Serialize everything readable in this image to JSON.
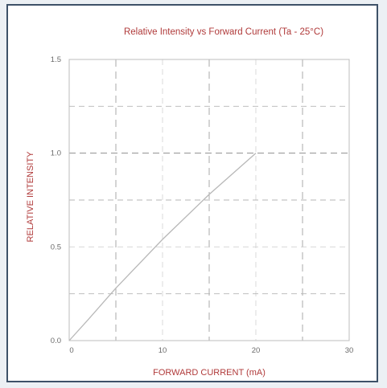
{
  "chart_data": {
    "type": "line",
    "title": "Relative Intensity vs Forward Current (Ta - 25°C)",
    "xlabel": "FORWARD CURRENT (mA)",
    "ylabel": "RELATIVE INTENSITY",
    "xlim": [
      0,
      30
    ],
    "ylim": [
      0,
      1.5
    ],
    "x_ticks": [
      0,
      10,
      20,
      30
    ],
    "y_ticks": [
      0.0,
      0.5,
      1.0,
      1.5
    ],
    "x_tick_labels": [
      "0",
      "10",
      "20",
      "30"
    ],
    "y_tick_labels": [
      "0.0",
      "0.5",
      "1.0",
      "1.5"
    ],
    "grid": true,
    "x_grid": [
      5,
      10,
      15,
      20,
      25
    ],
    "y_grid": [
      0.25,
      0.5,
      0.75,
      1.0,
      1.25
    ],
    "series": [
      {
        "x": [
          0,
          2,
          5,
          10,
          15,
          20
        ],
        "y": [
          0.0,
          0.11,
          0.28,
          0.54,
          0.78,
          1.0
        ]
      }
    ],
    "colors": {
      "title": "#b03a3a",
      "line": "#b8b8b8",
      "grid": "#c4c4c4",
      "frame": "#3d5168",
      "tick_text": "#6b6b6b"
    }
  }
}
